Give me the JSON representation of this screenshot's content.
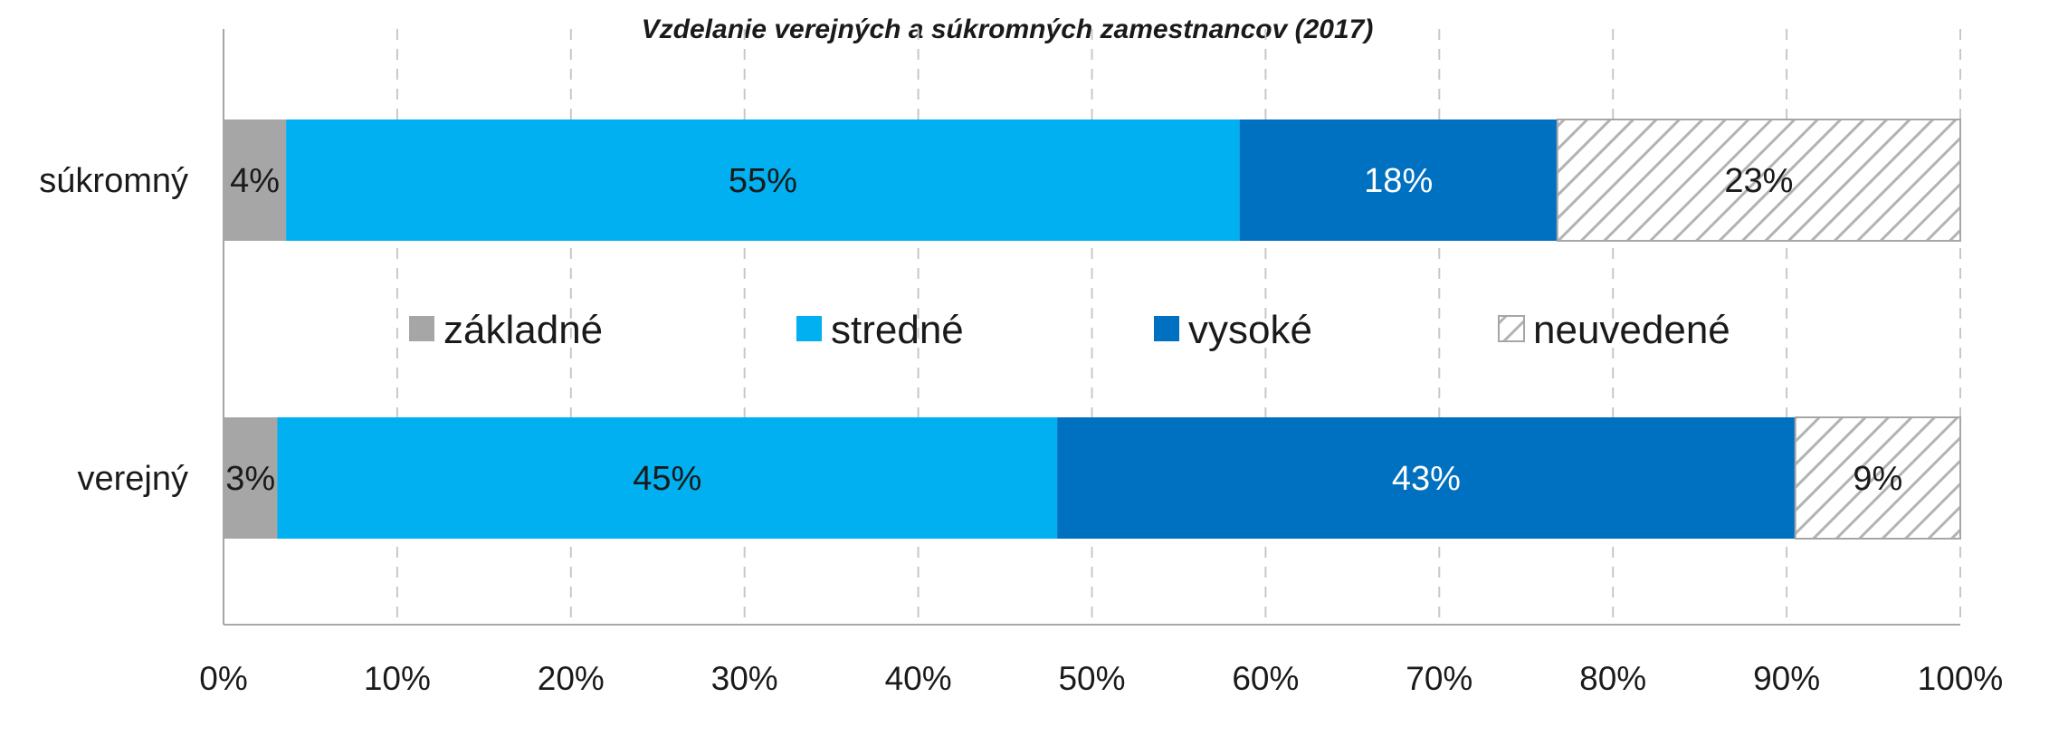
{
  "chart_data": {
    "type": "bar",
    "orientation": "horizontal",
    "stacked": true,
    "title": "Vzdelanie verejných a súkromných zamestnancov (2017)",
    "categories": [
      "súkromný",
      "verejný"
    ],
    "series": [
      {
        "name": "základné",
        "color": "#a6a6a6",
        "pattern": "solid",
        "label_color": "#1a1a1a",
        "values": [
          3.6,
          3.1
        ],
        "labels": [
          "4%",
          "3%"
        ]
      },
      {
        "name": "stredné",
        "color": "#00b0f0",
        "pattern": "solid",
        "label_color": "#1a1a1a",
        "values": [
          54.9,
          44.9
        ],
        "labels": [
          "55%",
          "45%"
        ]
      },
      {
        "name": "vysoké",
        "color": "#0070c0",
        "pattern": "solid",
        "label_color": "#ffffff",
        "values": [
          18.3,
          42.5
        ],
        "labels": [
          "18%",
          "43%"
        ]
      },
      {
        "name": "neuvedené",
        "color": "#a6a6a6",
        "pattern": "hatched",
        "label_color": "#1a1a1a",
        "values": [
          23.2,
          9.5
        ],
        "labels": [
          "23%",
          "9%"
        ]
      }
    ],
    "x_ticks": [
      "0%",
      "10%",
      "20%",
      "30%",
      "40%",
      "50%",
      "60%",
      "70%",
      "80%",
      "90%",
      "100%"
    ],
    "xlim": [
      0,
      100
    ],
    "grid": "vertical-dashed",
    "legend_position": "center"
  }
}
